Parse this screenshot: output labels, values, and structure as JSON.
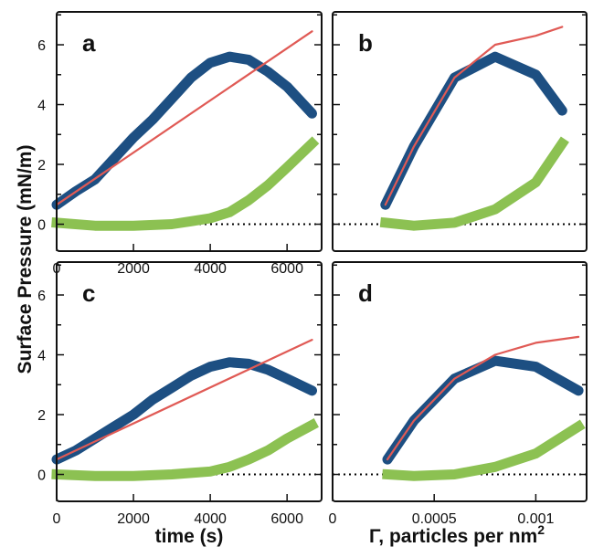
{
  "figure": {
    "y_axis_title": "Surface Pressure (mN/m)",
    "x_axis_title_left": "time (s)",
    "x_axis_title_right_main": "Γ, particles per nm",
    "x_axis_title_right_sup": "2"
  },
  "colors": {
    "blue": "#1d4f82",
    "red": "#e05a55",
    "green": "#8cc152",
    "zero_line": "#000000"
  },
  "chart_data": [
    {
      "panel": "a",
      "type": "line",
      "xlim": [
        0,
        6900
      ],
      "ylim": [
        -0.9,
        7.1
      ],
      "xticks": [
        "0",
        "2000",
        "4000",
        "6000"
      ],
      "yticks": [
        "0",
        "2",
        "4",
        "6"
      ],
      "zero_line": "dotted",
      "series": [
        {
          "color": "red",
          "x": [
            0,
            6650
          ],
          "y": [
            0.65,
            6.45
          ],
          "style": "thin line, step-sawtooth"
        },
        {
          "color": "blue",
          "x": [
            0,
            500,
            1000,
            1500,
            2000,
            2500,
            3000,
            3500,
            4000,
            4500,
            5000,
            5500,
            6000,
            6650
          ],
          "y": [
            0.65,
            1.1,
            1.5,
            2.2,
            2.9,
            3.5,
            4.2,
            4.9,
            5.4,
            5.6,
            5.5,
            5.1,
            4.6,
            3.7
          ],
          "style": "thick step line"
        },
        {
          "color": "green",
          "x": [
            0,
            1000,
            2000,
            3000,
            3500,
            4000,
            4500,
            5000,
            5500,
            6000,
            6650
          ],
          "y": [
            0.05,
            -0.05,
            -0.05,
            0.0,
            0.1,
            0.2,
            0.4,
            0.8,
            1.3,
            1.9,
            2.7
          ],
          "style": "thick step line"
        }
      ]
    },
    {
      "panel": "b",
      "type": "line",
      "xlim": [
        0,
        0.00125
      ],
      "ylim": [
        -0.9,
        7.1
      ],
      "xticks": [],
      "yticks": [],
      "zero_line": "dotted",
      "series": [
        {
          "color": "red",
          "x": [
            0.00026,
            0.0004,
            0.0006,
            0.0008,
            0.001,
            0.00113
          ],
          "y": [
            0.65,
            2.6,
            4.9,
            6.0,
            6.3,
            6.6
          ]
        },
        {
          "color": "blue",
          "x": [
            0.00026,
            0.0004,
            0.0006,
            0.0008,
            0.001,
            0.00113
          ],
          "y": [
            0.65,
            2.6,
            4.9,
            5.6,
            5.0,
            3.8
          ]
        },
        {
          "color": "green",
          "x": [
            0.00026,
            0.0004,
            0.0006,
            0.0008,
            0.001,
            0.00113
          ],
          "y": [
            0.05,
            -0.05,
            0.05,
            0.5,
            1.4,
            2.7
          ]
        }
      ]
    },
    {
      "panel": "c",
      "type": "line",
      "xlim": [
        0,
        6900
      ],
      "ylim": [
        -0.9,
        7.1
      ],
      "xticks": [
        "0",
        "2000",
        "4000",
        "6000"
      ],
      "yticks": [
        "0",
        "2",
        "4",
        "6"
      ],
      "zero_line": "dotted",
      "series": [
        {
          "color": "red",
          "x": [
            0,
            6650
          ],
          "y": [
            0.5,
            4.5
          ],
          "style": "thin line, step-sawtooth"
        },
        {
          "color": "blue",
          "x": [
            0,
            500,
            1000,
            1500,
            2000,
            2500,
            3000,
            3500,
            4000,
            4500,
            5000,
            5500,
            6000,
            6650
          ],
          "y": [
            0.5,
            0.8,
            1.2,
            1.6,
            2.0,
            2.5,
            2.9,
            3.3,
            3.6,
            3.75,
            3.7,
            3.5,
            3.2,
            2.8
          ],
          "style": "thick step line"
        },
        {
          "color": "green",
          "x": [
            0,
            1000,
            2000,
            3000,
            3500,
            4000,
            4500,
            5000,
            5500,
            6000,
            6650
          ],
          "y": [
            0.0,
            -0.05,
            -0.05,
            0.0,
            0.05,
            0.1,
            0.25,
            0.5,
            0.8,
            1.2,
            1.65
          ],
          "style": "thick step line"
        }
      ]
    },
    {
      "panel": "d",
      "type": "line",
      "xlim": [
        0,
        0.00125
      ],
      "ylim": [
        -0.9,
        7.1
      ],
      "xticks": [
        "0",
        "0.0005",
        "0.001"
      ],
      "yticks": [],
      "zero_line": "dotted",
      "series": [
        {
          "color": "red",
          "x": [
            0.00027,
            0.0004,
            0.0006,
            0.0008,
            0.001,
            0.00121
          ],
          "y": [
            0.5,
            1.8,
            3.2,
            4.0,
            4.4,
            4.6
          ]
        },
        {
          "color": "blue",
          "x": [
            0.00027,
            0.0004,
            0.0006,
            0.0008,
            0.001,
            0.00121
          ],
          "y": [
            0.5,
            1.8,
            3.2,
            3.8,
            3.6,
            2.8
          ]
        },
        {
          "color": "green",
          "x": [
            0.00027,
            0.0004,
            0.0006,
            0.0008,
            0.001,
            0.00121
          ],
          "y": [
            0.0,
            -0.05,
            0.0,
            0.25,
            0.7,
            1.6
          ]
        }
      ]
    }
  ]
}
